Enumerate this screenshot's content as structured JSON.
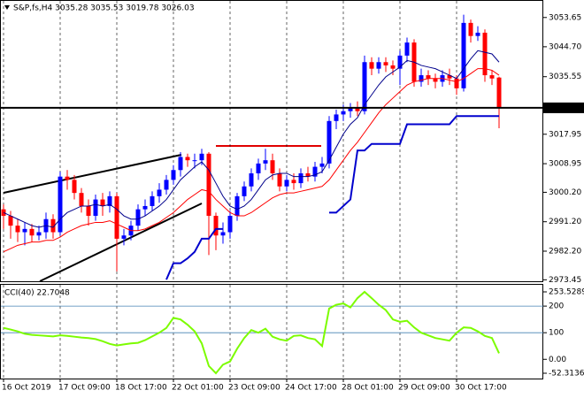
{
  "chart_data": [
    {
      "type": "candlestick",
      "title": "S&P,fs,H4  3035.28 3035.53 3019.78 3026.03",
      "ylim": [
        2973.0,
        3059.0
      ],
      "yticks": [
        3053.65,
        {
          "value": 3044.7,
          "label": "3044.70"
        },
        3035.55,
        3017.95,
        3008.95,
        {
          "value": 3000.2,
          "label": "3000.20"
        },
        {
          "value": 2991.2,
          "label": "2991.20"
        },
        {
          "value": 2982.2,
          "label": "2982.20"
        },
        2973.45
      ],
      "last": 3026.03,
      "xticks": [
        {
          "value": 0,
          "label": "16 Oct 2019"
        },
        {
          "value": 8,
          "label": "17 Oct 09:00"
        },
        {
          "value": 16,
          "label": "18 Oct 17:00"
        },
        {
          "value": 24,
          "label": "22 Oct 01:00"
        },
        {
          "value": 32,
          "label": "23 Oct 09:00"
        },
        {
          "value": 40,
          "label": "24 Oct 17:00"
        },
        {
          "value": 48,
          "label": "28 Oct 01:00"
        },
        {
          "value": 56,
          "label": "29 Oct 09:00"
        },
        {
          "value": 64,
          "label": "30 Oct 17:00"
        }
      ],
      "up_color": "#0000ff",
      "down_color": "#ff0000",
      "open": [
        2995,
        2993,
        2990,
        2988,
        2989,
        2987,
        2988,
        2992,
        2988,
        3005,
        3004,
        3000,
        2996,
        2993,
        2998,
        2996,
        2999,
        2986,
        2987,
        2990,
        2995,
        2996,
        2999,
        3001,
        3004,
        3007,
        3011,
        3010,
        3010,
        3012,
        2993,
        2987,
        2988,
        2993,
        2999,
        3002,
        3006,
        3009,
        3010,
        3006,
        3002,
        3004,
        3003,
        3006,
        3005,
        3008,
        3009,
        3022,
        3024,
        3025,
        3026,
        3025,
        3040,
        3038,
        3040,
        3039,
        3038,
        3042,
        3046,
        3034,
        3036,
        3035,
        3034,
        3036,
        3035,
        3032,
        3052,
        3048,
        3049,
        3036,
        3035.28
      ],
      "high": [
        2996.5,
        2994.5,
        2992,
        2991,
        2990.5,
        2990,
        2994,
        2993.5,
        3006.5,
        3007,
        3005.5,
        3001.5,
        2998,
        2999.5,
        3000,
        3000.5,
        3000,
        2989,
        2991.5,
        2996.5,
        2998,
        3000.5,
        3003,
        3005.5,
        3008.5,
        3012.5,
        3012,
        3012,
        3013.5,
        3012.5,
        2994,
        2991,
        2994.5,
        3000,
        3003.5,
        3007.5,
        3010.5,
        3013.5,
        3012,
        3007.5,
        3005.5,
        3006,
        3007.5,
        3008,
        3009.5,
        3011,
        3023.5,
        3025.5,
        3027,
        3027.5,
        3028,
        3042,
        3041.5,
        3041.5,
        3041.5,
        3040.5,
        3043.5,
        3047.5,
        3047,
        3038,
        3037.5,
        3036.5,
        3037.5,
        3038,
        3036,
        3054.5,
        3053,
        3051,
        3050,
        3037.5,
        3035.53
      ],
      "low": [
        2989,
        2986,
        2985,
        2984,
        2985,
        2985.5,
        2986,
        2986,
        2987,
        3001,
        2998,
        2994,
        2990,
        2991.5,
        2993,
        2994,
        2976,
        2984,
        2985.5,
        2988.5,
        2993,
        2994.5,
        2997,
        2999.5,
        3002.5,
        3005,
        3008,
        3007.5,
        3008.5,
        2981,
        2982.5,
        2984.5,
        2986,
        2991.5,
        2997.5,
        3000.5,
        3004,
        3007,
        3004,
        3000.5,
        3000.5,
        3001,
        3001.5,
        3003.5,
        3003.5,
        3006,
        3007.5,
        3019.5,
        3022,
        3023,
        3023.5,
        3024,
        3036,
        3036.5,
        3037,
        3036,
        3033,
        3040,
        3032.5,
        3032.5,
        3033,
        3032,
        3032.5,
        3033,
        3030,
        3031,
        3046,
        3046.5,
        3034,
        3033,
        3019.78
      ],
      "close": [
        2993,
        2990,
        2988,
        2989,
        2987,
        2988,
        2992,
        2988,
        3005,
        3004,
        3000,
        2996,
        2993,
        2998,
        2996,
        2999,
        2986,
        2987,
        2990,
        2995,
        2996,
        2999,
        3001,
        3004,
        3007,
        3011,
        3010,
        3010,
        3012,
        2993,
        2987,
        2988,
        2993,
        2999,
        3002,
        3006,
        3009,
        3010,
        3006,
        3002,
        3004,
        3003,
        3006,
        3005,
        3008,
        3009,
        3022,
        3024,
        3025,
        3026,
        3025,
        3040,
        3038,
        3040,
        3039,
        3038,
        3042,
        3046,
        3034,
        3036,
        3035,
        3034,
        3036,
        3035,
        3032,
        3052,
        3048,
        3049,
        3036,
        3035,
        3026.03
      ],
      "series": [
        {
          "color": "#00008b",
          "values": [
            2994,
            2993,
            2992,
            2991,
            2990,
            2989.5,
            2990,
            2989.5,
            2992,
            2994,
            2995,
            2996,
            2996,
            2996.5,
            2996,
            2996.5,
            2995,
            2993,
            2992,
            2992,
            2993,
            2994.5,
            2996,
            2998,
            3001,
            3004,
            3006,
            3008,
            3009.5,
            3007,
            3003,
            2999,
            2996,
            2995,
            2996,
            2998,
            3001,
            3004,
            3005.5,
            3006,
            3006,
            3005,
            3005,
            3005,
            3005.5,
            3006.5,
            3010,
            3014,
            3018,
            3021,
            3023,
            3027,
            3030,
            3033,
            3035.5,
            3037,
            3038.5,
            3040.5,
            3040,
            3039,
            3038.5,
            3038,
            3037,
            3036,
            3035,
            3038,
            3041,
            3043.5,
            3043,
            3042.5,
            3040
          ]
        },
        {
          "color": "#ff0000",
          "values": [
            2982,
            2983,
            2984,
            2984.5,
            2985,
            2985,
            2985.5,
            2985.5,
            2986.5,
            2988,
            2989,
            2990,
            2990.5,
            2991,
            2991,
            2991.5,
            2990.5,
            2989.5,
            2988.5,
            2988.5,
            2989,
            2990,
            2991,
            2992.5,
            2994,
            2996,
            2998,
            2999.5,
            3001,
            3000.5,
            2998,
            2996,
            2994,
            2993,
            2993,
            2994,
            2995.5,
            2997,
            2998.5,
            2999.5,
            3000,
            3000,
            3000.5,
            3001,
            3001.5,
            3002,
            3004,
            3007,
            3010,
            3013,
            3015.5,
            3018.5,
            3021.5,
            3024.5,
            3027,
            3029,
            3031,
            3033,
            3034,
            3034.5,
            3035,
            3035,
            3035,
            3034.5,
            3034,
            3035,
            3036.5,
            3038,
            3038,
            3037.5,
            3036
          ]
        },
        {
          "color": "#0000cd",
          "values": [
            null,
            null,
            null,
            null,
            null,
            null,
            null,
            null,
            null,
            null,
            null,
            null,
            null,
            null,
            null,
            null,
            null,
            null,
            null,
            null,
            null,
            null,
            null,
            2973.5,
            2978.5,
            2978.5,
            2980,
            2982,
            2986,
            2986,
            2989,
            2989,
            null,
            null,
            null,
            null,
            null,
            null,
            null,
            null,
            null,
            null,
            null,
            null,
            null,
            null,
            2994,
            2994,
            2996,
            2998,
            3013,
            3013,
            3015,
            3015,
            3015,
            3015,
            3015,
            3021,
            3021,
            3021,
            3021,
            3021,
            3021,
            3021,
            3023.5,
            3023.5,
            3023.5,
            3023.5,
            3023.5,
            3023.5,
            3023.5
          ]
        }
      ]
    },
    {
      "type": "line",
      "title": "CCI(40) 22.7048",
      "ylim": [
        -52.3136,
        253.5289
      ],
      "yticks": [
        253.5289,
        200,
        100,
        {
          "value": 0,
          "label": "0.00"
        },
        -52.3136
      ],
      "levels": [
        200,
        100
      ],
      "level_color": "#4682b4",
      "series": [
        {
          "color": "#7cfc00",
          "values": [
            118,
            112,
            105,
            96,
            92,
            90,
            88,
            86,
            90,
            88,
            85,
            82,
            80,
            76,
            68,
            58,
            52,
            56,
            60,
            62,
            72,
            86,
            100,
            118,
            156,
            150,
            130,
            105,
            60,
            -25,
            -52.3136,
            -20,
            -8,
            40,
            80,
            110,
            100,
            115,
            85,
            75,
            70,
            88,
            90,
            80,
            75,
            50,
            191,
            205,
            210,
            195,
            230,
            253.5289,
            230,
            205,
            185,
            150,
            141,
            145,
            120,
            100,
            90,
            80,
            75,
            70,
            100,
            120,
            118,
            105,
            88,
            80,
            22.7048
          ]
        }
      ]
    }
  ]
}
